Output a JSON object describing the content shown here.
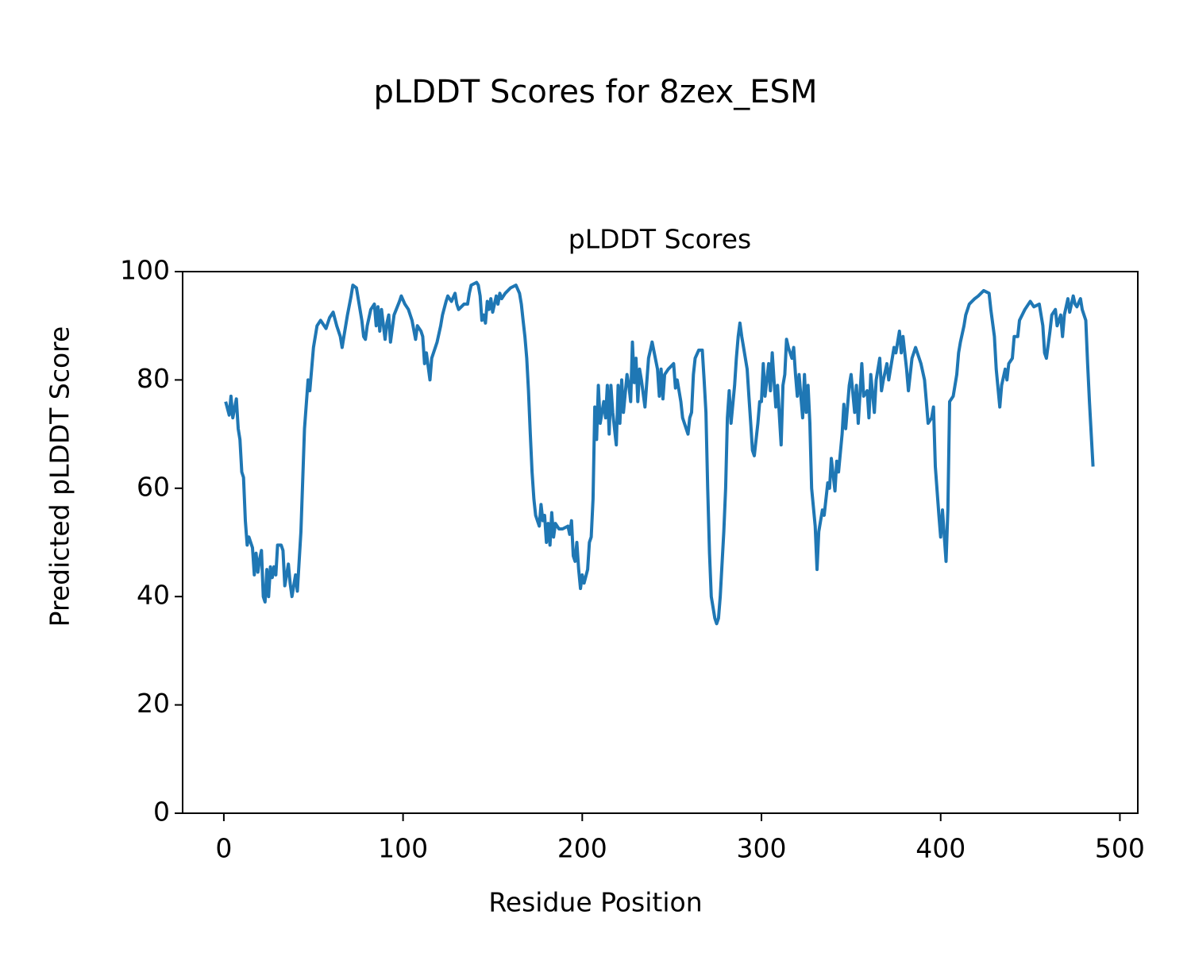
{
  "chart_data": {
    "type": "line",
    "title": "pLDDT Scores for 8zex_ESM",
    "subtitle": "pLDDT Scores",
    "x_label": "Residue Position",
    "y_label": "Predicted pLDDT Score",
    "color": "#1f77b4",
    "xlim": [
      -23,
      510
    ],
    "xticks": [
      0,
      100,
      200,
      300,
      400,
      500
    ],
    "ylim": [
      0,
      100
    ],
    "yticks": [
      0,
      20,
      40,
      60,
      80,
      100
    ],
    "grid": false,
    "x": [
      1,
      3,
      4,
      5,
      7,
      8,
      9,
      10,
      11,
      12,
      13,
      14,
      16,
      17,
      18,
      19,
      20,
      21,
      22,
      23,
      24,
      25,
      26,
      27,
      28,
      29,
      30,
      32,
      33,
      34,
      36,
      37,
      38,
      40,
      41,
      43,
      45,
      47,
      48,
      50,
      52,
      54,
      57,
      59,
      61,
      63,
      65,
      66,
      67,
      69,
      71,
      72,
      74,
      77,
      78,
      79,
      80,
      82,
      84,
      85,
      86,
      87,
      88,
      90,
      91,
      92,
      93,
      95,
      98,
      99,
      101,
      103,
      105,
      107,
      108,
      110,
      111,
      112,
      113,
      115,
      116,
      119,
      121,
      122,
      124,
      125,
      127,
      129,
      130,
      131,
      134,
      136,
      137,
      138,
      141,
      142,
      143,
      144,
      145,
      146,
      147,
      148,
      149,
      150,
      152,
      153,
      154,
      155,
      157,
      160,
      163,
      165,
      166,
      167,
      168,
      169,
      170,
      171,
      172,
      173,
      174,
      176,
      177,
      178,
      179,
      180,
      181,
      182,
      183,
      184,
      185,
      187,
      189,
      192,
      193,
      194,
      195,
      196,
      197,
      198,
      199,
      200,
      201,
      203,
      204,
      205,
      206,
      207,
      208,
      209,
      210,
      212,
      213,
      214,
      215,
      216,
      217,
      219,
      220,
      221,
      222,
      223,
      225,
      226,
      227,
      228,
      229,
      230,
      231,
      232,
      233,
      235,
      237,
      238,
      239,
      242,
      243,
      244,
      245,
      246,
      248,
      251,
      252,
      253,
      255,
      256,
      259,
      260,
      261,
      262,
      263,
      265,
      267,
      268,
      269,
      270,
      271,
      272,
      274,
      275,
      276,
      277,
      279,
      280,
      281,
      282,
      283,
      285,
      286,
      287,
      288,
      289,
      290,
      292,
      293,
      294,
      295,
      296,
      298,
      299,
      300,
      301,
      302,
      304,
      305,
      306,
      307,
      308,
      309,
      311,
      312,
      313,
      314,
      315,
      317,
      318,
      319,
      320,
      321,
      323,
      324,
      325,
      326,
      327,
      328,
      330,
      331,
      332,
      334,
      335,
      337,
      338,
      339,
      341,
      342,
      343,
      345,
      346,
      347,
      349,
      350,
      352,
      353,
      354,
      356,
      357,
      359,
      360,
      361,
      363,
      364,
      366,
      367,
      368,
      370,
      371,
      372,
      374,
      375,
      377,
      378,
      379,
      381,
      382,
      384,
      386,
      389,
      391,
      392,
      393,
      395,
      396,
      397,
      399,
      400,
      401,
      403,
      404,
      405,
      407,
      409,
      410,
      411,
      413,
      414,
      416,
      419,
      421,
      424,
      427,
      428,
      430,
      431,
      433,
      434,
      436,
      437,
      438,
      440,
      441,
      443,
      444,
      447,
      450,
      452,
      455,
      457,
      458,
      459,
      461,
      462,
      464,
      465,
      467,
      468,
      469,
      471,
      472,
      474,
      475,
      476,
      478,
      479,
      481,
      482,
      483,
      485
    ],
    "values": [
      76,
      73.5,
      77,
      73,
      76.5,
      71,
      69,
      63,
      62,
      54,
      49.5,
      51,
      49,
      44,
      48,
      44.5,
      47,
      48.5,
      40,
      39,
      45,
      40,
      45.5,
      43.5,
      45.5,
      44,
      49.5,
      49.5,
      48.5,
      42,
      46,
      42.5,
      40,
      44,
      41,
      52,
      71,
      80,
      78,
      86,
      90,
      91,
      89.5,
      91.5,
      92.5,
      90,
      88,
      86,
      88,
      92,
      95.5,
      97.5,
      97,
      91,
      88,
      87.5,
      90,
      93,
      94,
      90,
      93.5,
      89,
      93,
      87.5,
      90.5,
      92,
      87,
      92,
      94.5,
      95.5,
      94,
      93,
      91,
      87.5,
      90,
      89,
      88,
      83,
      85,
      80,
      84,
      87,
      90,
      92,
      94.5,
      95.5,
      94.5,
      96,
      94,
      93,
      94,
      94,
      96,
      97.5,
      98,
      97.5,
      95.5,
      91,
      92,
      90.5,
      94.5,
      93,
      95,
      92.5,
      95.5,
      94,
      96,
      95,
      96,
      97,
      97.5,
      96,
      94,
      91,
      88,
      84,
      78,
      70,
      63,
      58,
      55,
      53,
      57,
      54,
      55,
      50,
      53.5,
      49.5,
      55.5,
      51,
      53.5,
      52.5,
      52.5,
      53,
      51.5,
      54,
      47.5,
      46.5,
      50,
      45,
      41.5,
      44,
      42.5,
      45,
      50,
      51,
      58,
      75,
      69,
      79,
      72,
      76,
      73,
      79,
      70,
      79,
      74,
      68,
      79,
      72,
      80,
      74,
      81,
      79,
      76,
      87,
      79.5,
      84,
      76,
      82,
      80,
      75,
      84,
      85.5,
      87,
      82,
      77,
      82,
      76.5,
      81,
      82,
      83,
      78.5,
      80,
      76,
      73,
      70,
      73,
      74,
      81,
      84,
      85.5,
      85.5,
      80,
      74,
      60,
      48,
      40,
      36,
      35,
      36,
      40,
      52,
      60,
      73,
      78,
      72,
      79,
      84,
      88,
      90.5,
      88,
      86,
      82,
      77,
      72,
      67,
      66,
      72,
      76,
      76,
      83,
      77,
      83,
      78,
      85,
      80,
      75,
      79,
      68,
      79,
      81,
      87.5,
      86,
      84,
      86,
      81,
      77,
      81,
      73,
      81,
      74,
      79,
      72,
      60,
      53,
      45,
      52,
      56,
      55,
      61,
      60,
      65.5,
      59.5,
      65,
      63,
      70,
      75.5,
      71,
      79,
      81,
      74,
      79,
      72,
      83,
      77,
      78,
      73,
      81,
      74,
      80,
      84,
      78,
      80,
      83,
      80,
      82,
      86,
      85,
      89,
      85,
      88,
      82,
      78,
      84,
      86,
      83,
      80,
      76,
      72,
      73,
      75,
      64,
      55,
      51,
      56,
      46.5,
      56,
      76,
      77,
      81,
      85,
      87,
      90,
      92,
      94,
      95,
      95.5,
      96.5,
      96,
      93,
      88,
      82,
      75,
      79,
      82,
      80,
      83,
      84,
      88,
      88,
      91,
      93,
      94.5,
      93.5,
      94,
      90,
      85,
      84,
      89,
      92,
      93,
      90,
      92,
      88,
      92,
      95,
      92.5,
      95.5,
      94,
      93.5,
      95,
      93,
      91,
      83,
      76,
      64
    ]
  }
}
